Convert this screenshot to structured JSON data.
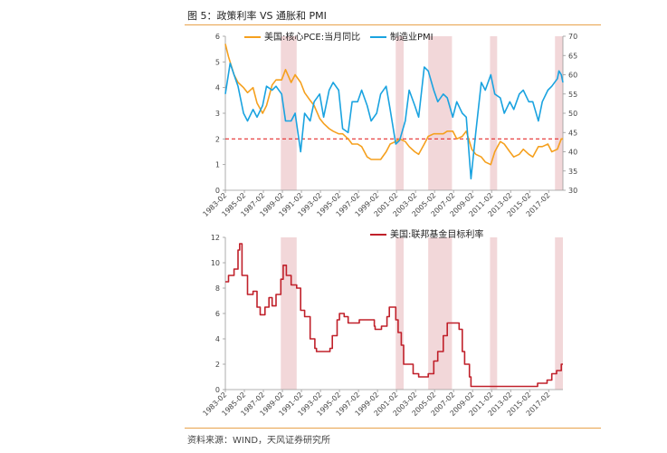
{
  "figure": {
    "title": "图 5：政策利率 VS 通胀和 PMI",
    "source": "资料来源：WIND，天风证券研究所"
  },
  "colors": {
    "pce": "#f5a01e",
    "pmi": "#1aa3e0",
    "fed": "#c0202a",
    "recession": "#f2d7d9",
    "ref_line": "#e52c2c",
    "rule": "#e8a24b"
  },
  "chart_data": [
    {
      "type": "line",
      "x_type": "date",
      "xlim": [
        "1983-02",
        "2018-08"
      ],
      "x_ticks": [
        "1983-02",
        "1985-02",
        "1987-02",
        "1989-02",
        "1991-02",
        "1993-02",
        "1995-02",
        "1997-02",
        "1999-02",
        "2001-02",
        "2003-02",
        "2005-02",
        "2007-02",
        "2009-02",
        "2011-02",
        "2013-02",
        "2015-02",
        "2017-02"
      ],
      "left_axis": {
        "ylim": [
          0,
          6
        ],
        "ticks": [
          "0",
          "1",
          "2",
          "3",
          "4",
          "5",
          "6"
        ]
      },
      "right_axis": {
        "ylim": [
          30,
          70
        ],
        "ticks": [
          "30",
          "35",
          "40",
          "45",
          "50",
          "55",
          "60",
          "65",
          "70"
        ]
      },
      "reference_line": {
        "axis": "left",
        "y": 2,
        "style": "dashed"
      },
      "recession_bands": [
        [
          "1988-12",
          "1990-08"
        ],
        [
          "2001-01",
          "2001-11"
        ],
        [
          "2004-06",
          "2006-12"
        ],
        [
          "2010-12",
          "2011-09"
        ],
        [
          "2017-10",
          "2018-08"
        ]
      ],
      "legend_position": "top",
      "series": [
        {
          "name": "美国:核心PCE:当月同比",
          "axis": "left",
          "points": [
            [
              "1983-02",
              5.7
            ],
            [
              "1983-06",
              5.2
            ],
            [
              "1984-01",
              4.5
            ],
            [
              "1984-06",
              4.2
            ],
            [
              "1985-01",
              4.0
            ],
            [
              "1985-06",
              3.8
            ],
            [
              "1986-01",
              4.0
            ],
            [
              "1986-06",
              3.4
            ],
            [
              "1987-01",
              3.0
            ],
            [
              "1987-06",
              3.3
            ],
            [
              "1988-01",
              4.1
            ],
            [
              "1988-06",
              4.3
            ],
            [
              "1989-01",
              4.3
            ],
            [
              "1989-06",
              4.7
            ],
            [
              "1990-01",
              4.2
            ],
            [
              "1990-06",
              4.5
            ],
            [
              "1991-01",
              4.2
            ],
            [
              "1991-06",
              3.8
            ],
            [
              "1992-01",
              3.5
            ],
            [
              "1992-06",
              3.3
            ],
            [
              "1993-01",
              2.8
            ],
            [
              "1993-06",
              2.6
            ],
            [
              "1994-01",
              2.4
            ],
            [
              "1994-06",
              2.3
            ],
            [
              "1995-01",
              2.2
            ],
            [
              "1995-06",
              2.2
            ],
            [
              "1996-01",
              2.0
            ],
            [
              "1996-06",
              1.8
            ],
            [
              "1997-01",
              1.8
            ],
            [
              "1997-06",
              1.7
            ],
            [
              "1998-01",
              1.3
            ],
            [
              "1998-06",
              1.2
            ],
            [
              "1999-01",
              1.2
            ],
            [
              "1999-06",
              1.2
            ],
            [
              "2000-01",
              1.5
            ],
            [
              "2000-06",
              1.8
            ],
            [
              "2001-01",
              1.9
            ],
            [
              "2001-06",
              2.0
            ],
            [
              "2002-01",
              1.9
            ],
            [
              "2002-06",
              1.7
            ],
            [
              "2003-01",
              1.5
            ],
            [
              "2003-06",
              1.4
            ],
            [
              "2004-01",
              1.8
            ],
            [
              "2004-06",
              2.1
            ],
            [
              "2005-01",
              2.2
            ],
            [
              "2005-06",
              2.2
            ],
            [
              "2006-01",
              2.2
            ],
            [
              "2006-06",
              2.3
            ],
            [
              "2007-01",
              2.3
            ],
            [
              "2007-06",
              2.0
            ],
            [
              "2008-01",
              2.1
            ],
            [
              "2008-06",
              2.3
            ],
            [
              "2009-01",
              1.6
            ],
            [
              "2009-06",
              1.4
            ],
            [
              "2010-01",
              1.3
            ],
            [
              "2010-06",
              1.1
            ],
            [
              "2011-01",
              1.0
            ],
            [
              "2011-06",
              1.5
            ],
            [
              "2012-01",
              1.9
            ],
            [
              "2012-06",
              1.8
            ],
            [
              "2013-01",
              1.5
            ],
            [
              "2013-06",
              1.3
            ],
            [
              "2014-01",
              1.4
            ],
            [
              "2014-06",
              1.6
            ],
            [
              "2015-01",
              1.4
            ],
            [
              "2015-06",
              1.3
            ],
            [
              "2016-01",
              1.7
            ],
            [
              "2016-06",
              1.7
            ],
            [
              "2017-01",
              1.8
            ],
            [
              "2017-06",
              1.5
            ],
            [
              "2018-01",
              1.6
            ],
            [
              "2018-06",
              2.0
            ],
            [
              "2018-08",
              2.0
            ]
          ]
        },
        {
          "name": "制造业PMI",
          "axis": "right",
          "points": [
            [
              "1983-02",
              55
            ],
            [
              "1983-08",
              63
            ],
            [
              "1984-01",
              60
            ],
            [
              "1984-06",
              57
            ],
            [
              "1985-01",
              50
            ],
            [
              "1985-06",
              48
            ],
            [
              "1986-01",
              51
            ],
            [
              "1986-06",
              49
            ],
            [
              "1987-01",
              52
            ],
            [
              "1987-06",
              57
            ],
            [
              "1988-01",
              56
            ],
            [
              "1988-06",
              57
            ],
            [
              "1989-01",
              55
            ],
            [
              "1989-06",
              48
            ],
            [
              "1990-01",
              48
            ],
            [
              "1990-06",
              50
            ],
            [
              "1991-01",
              40
            ],
            [
              "1991-06",
              50
            ],
            [
              "1992-01",
              48
            ],
            [
              "1992-06",
              53
            ],
            [
              "1993-01",
              55
            ],
            [
              "1993-06",
              49
            ],
            [
              "1994-01",
              56
            ],
            [
              "1994-06",
              58
            ],
            [
              "1995-01",
              56
            ],
            [
              "1995-06",
              46
            ],
            [
              "1996-01",
              45
            ],
            [
              "1996-06",
              53
            ],
            [
              "1997-01",
              53
            ],
            [
              "1997-06",
              56
            ],
            [
              "1998-01",
              52
            ],
            [
              "1998-06",
              48
            ],
            [
              "1999-01",
              50
            ],
            [
              "1999-06",
              55
            ],
            [
              "2000-01",
              57
            ],
            [
              "2000-06",
              51
            ],
            [
              "2001-01",
              42
            ],
            [
              "2001-06",
              43
            ],
            [
              "2002-01",
              48
            ],
            [
              "2002-06",
              56
            ],
            [
              "2003-01",
              52
            ],
            [
              "2003-06",
              49
            ],
            [
              "2004-01",
              62
            ],
            [
              "2004-06",
              61
            ],
            [
              "2005-01",
              56
            ],
            [
              "2005-06",
              53
            ],
            [
              "2006-01",
              55
            ],
            [
              "2006-06",
              54
            ],
            [
              "2007-01",
              49
            ],
            [
              "2007-06",
              53
            ],
            [
              "2008-01",
              50
            ],
            [
              "2008-06",
              49
            ],
            [
              "2008-12",
              33
            ],
            [
              "2009-06",
              45
            ],
            [
              "2010-01",
              58
            ],
            [
              "2010-06",
              56
            ],
            [
              "2011-01",
              60
            ],
            [
              "2011-06",
              55
            ],
            [
              "2012-01",
              54
            ],
            [
              "2012-06",
              50
            ],
            [
              "2013-01",
              53
            ],
            [
              "2013-06",
              51
            ],
            [
              "2014-01",
              55
            ],
            [
              "2014-06",
              56
            ],
            [
              "2015-01",
              53
            ],
            [
              "2015-06",
              53
            ],
            [
              "2016-01",
              48
            ],
            [
              "2016-06",
              53
            ],
            [
              "2017-01",
              56
            ],
            [
              "2017-06",
              57
            ],
            [
              "2018-01",
              59
            ],
            [
              "2018-03",
              61
            ],
            [
              "2018-06",
              60
            ],
            [
              "2018-08",
              58
            ]
          ]
        }
      ]
    },
    {
      "type": "line",
      "x_type": "date",
      "xlim": [
        "1983-02",
        "2018-08"
      ],
      "x_ticks": [
        "1983-02",
        "1985-02",
        "1987-02",
        "1989-02",
        "1991-02",
        "1993-02",
        "1995-02",
        "1997-02",
        "1999-02",
        "2001-02",
        "2003-02",
        "2005-02",
        "2007-02",
        "2009-02",
        "2011-02",
        "2013-02",
        "2015-02",
        "2017-02"
      ],
      "left_axis": {
        "ylim": [
          0,
          12
        ],
        "ticks": [
          "0",
          "2",
          "4",
          "6",
          "8",
          "10",
          "12"
        ]
      },
      "recession_bands": [
        [
          "1988-12",
          "1990-08"
        ],
        [
          "2001-01",
          "2001-11"
        ],
        [
          "2004-06",
          "2006-12"
        ],
        [
          "2010-12",
          "2011-09"
        ],
        [
          "2017-10",
          "2018-08"
        ]
      ],
      "legend_position": "top",
      "series": [
        {
          "name": "美国:联邦基金目标利率",
          "axis": "left",
          "step": true,
          "points": [
            [
              "1983-02",
              8.5
            ],
            [
              "1983-06",
              9.0
            ],
            [
              "1984-01",
              9.5
            ],
            [
              "1984-06",
              11.0
            ],
            [
              "1984-08",
              11.5
            ],
            [
              "1984-11",
              9.0
            ],
            [
              "1985-06",
              7.5
            ],
            [
              "1986-01",
              7.75
            ],
            [
              "1986-06",
              6.5
            ],
            [
              "1986-10",
              5.9
            ],
            [
              "1987-04",
              6.5
            ],
            [
              "1987-09",
              7.25
            ],
            [
              "1988-01",
              6.6
            ],
            [
              "1988-06",
              7.5
            ],
            [
              "1988-12",
              8.7
            ],
            [
              "1989-03",
              9.8
            ],
            [
              "1989-07",
              9.0
            ],
            [
              "1990-01",
              8.25
            ],
            [
              "1990-08",
              8.0
            ],
            [
              "1991-01",
              6.25
            ],
            [
              "1991-06",
              5.75
            ],
            [
              "1992-01",
              4.0
            ],
            [
              "1992-07",
              3.25
            ],
            [
              "1992-09",
              3.0
            ],
            [
              "1994-02",
              3.25
            ],
            [
              "1994-05",
              4.25
            ],
            [
              "1994-11",
              5.5
            ],
            [
              "1995-02",
              6.0
            ],
            [
              "1995-08",
              5.75
            ],
            [
              "1996-01",
              5.25
            ],
            [
              "1997-03",
              5.5
            ],
            [
              "1998-10",
              5.0
            ],
            [
              "1998-11",
              4.75
            ],
            [
              "1999-07",
              5.0
            ],
            [
              "2000-02",
              5.75
            ],
            [
              "2000-05",
              6.5
            ],
            [
              "2001-01",
              5.5
            ],
            [
              "2001-04",
              4.5
            ],
            [
              "2001-08",
              3.5
            ],
            [
              "2001-11",
              2.0
            ],
            [
              "2002-11",
              1.25
            ],
            [
              "2003-06",
              1.0
            ],
            [
              "2004-06",
              1.25
            ],
            [
              "2005-01",
              2.25
            ],
            [
              "2005-06",
              3.0
            ],
            [
              "2006-01",
              4.25
            ],
            [
              "2006-06",
              5.25
            ],
            [
              "2007-09",
              4.75
            ],
            [
              "2008-01",
              3.0
            ],
            [
              "2008-04",
              2.0
            ],
            [
              "2008-10",
              1.0
            ],
            [
              "2008-12",
              0.25
            ],
            [
              "2015-12",
              0.5
            ],
            [
              "2016-12",
              0.75
            ],
            [
              "2017-06",
              1.25
            ],
            [
              "2017-12",
              1.5
            ],
            [
              "2018-06",
              2.0
            ],
            [
              "2018-08",
              2.0
            ]
          ]
        }
      ]
    }
  ]
}
